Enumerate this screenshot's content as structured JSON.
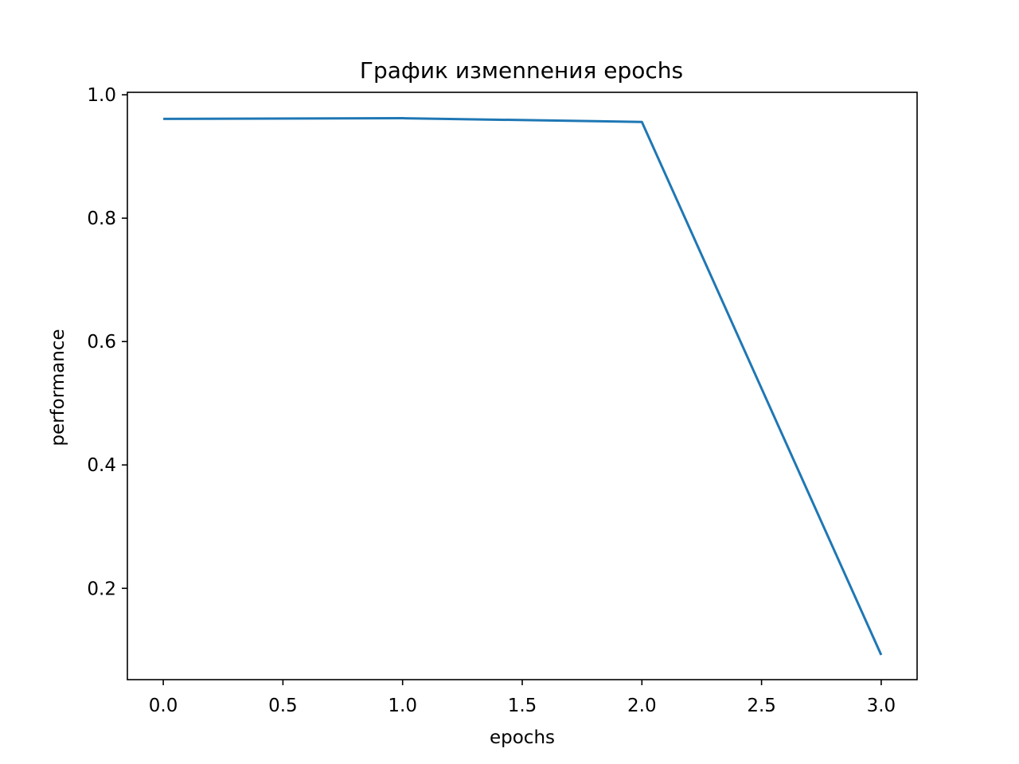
{
  "chart_data": {
    "type": "line",
    "title": "График измennения epochs",
    "xlabel": "epochs",
    "ylabel": "performance",
    "xlim": [
      -0.15,
      3.15
    ],
    "ylim": [
      0.052,
      1.004
    ],
    "x_ticks": [
      0.0,
      0.5,
      1.0,
      1.5,
      2.0,
      2.5,
      3.0
    ],
    "x_tick_labels": [
      "0.0",
      "0.5",
      "1.0",
      "1.5",
      "2.0",
      "2.5",
      "3.0"
    ],
    "y_ticks": [
      0.2,
      0.4,
      0.6,
      0.8,
      1.0
    ],
    "y_tick_labels": [
      "0.2",
      "0.4",
      "0.6",
      "0.8",
      "1.0"
    ],
    "grid": false,
    "series": [
      {
        "color": "#1f77b4",
        "x": [
          0,
          1,
          2,
          3
        ],
        "y": [
          0.961,
          0.962,
          0.956,
          0.092
        ]
      }
    ]
  }
}
